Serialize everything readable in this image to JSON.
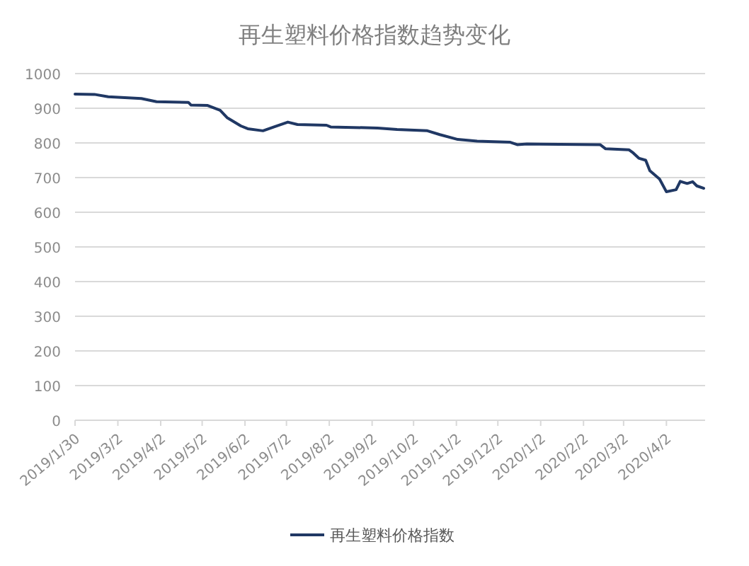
{
  "chart_data": {
    "type": "line",
    "title": "再生塑料价格指数趋势变化",
    "x": [
      "2019-01-30",
      "2019-02-13",
      "2019-02-23",
      "2019-03-19",
      "2019-03-30",
      "2019-04-22",
      "2019-04-24",
      "2019-05-06",
      "2019-05-15",
      "2019-05-20",
      "2019-05-30",
      "2019-06-04",
      "2019-06-15",
      "2019-06-23",
      "2019-07-03",
      "2019-07-10",
      "2019-07-31",
      "2019-08-03",
      "2019-09-06",
      "2019-09-20",
      "2019-10-12",
      "2019-10-21",
      "2019-11-03",
      "2019-11-17",
      "2019-12-11",
      "2019-12-16",
      "2019-12-23",
      "2020-02-14",
      "2020-02-18",
      "2020-03-06",
      "2020-03-09",
      "2020-03-13",
      "2020-03-18",
      "2020-03-21",
      "2020-03-28",
      "2020-04-02",
      "2020-04-09",
      "2020-04-12",
      "2020-04-17",
      "2020-04-21",
      "2020-04-24",
      "2020-04-29"
    ],
    "series": [
      {
        "name": "再生塑料价格指数",
        "color": "#203864",
        "values": [
          941,
          940,
          933,
          928,
          919,
          917,
          909,
          908,
          894,
          873,
          849,
          841,
          835,
          846,
          860,
          853,
          851,
          846,
          843,
          839,
          835,
          824,
          810,
          805,
          802,
          795,
          797,
          795,
          783,
          780,
          771,
          756,
          750,
          720,
          696,
          659,
          665,
          689,
          683,
          688,
          676,
          669
        ]
      }
    ],
    "xlim": [
      "2019-01-30",
      "2020-04-30"
    ],
    "xticks": [
      {
        "value": "2019-01-30",
        "label": "2019/1/30"
      },
      {
        "value": "2019-03-02",
        "label": "2019/3/2"
      },
      {
        "value": "2019-04-02",
        "label": "2019/4/2"
      },
      {
        "value": "2019-05-02",
        "label": "2019/5/2"
      },
      {
        "value": "2019-06-02",
        "label": "2019/6/2"
      },
      {
        "value": "2019-07-02",
        "label": "2019/7/2"
      },
      {
        "value": "2019-08-02",
        "label": "2019/8/2"
      },
      {
        "value": "2019-09-02",
        "label": "2019/9/2"
      },
      {
        "value": "2019-10-02",
        "label": "2019/10/2"
      },
      {
        "value": "2019-11-02",
        "label": "2019/11/2"
      },
      {
        "value": "2019-12-02",
        "label": "2019/12/2"
      },
      {
        "value": "2020-01-02",
        "label": "2020/1/2"
      },
      {
        "value": "2020-02-02",
        "label": "2020/2/2"
      },
      {
        "value": "2020-03-02",
        "label": "2020/3/2"
      },
      {
        "value": "2020-04-02",
        "label": "2020/4/2"
      }
    ],
    "ylim": [
      0,
      1000
    ],
    "yticks": [
      0,
      100,
      200,
      300,
      400,
      500,
      600,
      700,
      800,
      900,
      1000
    ],
    "grid": "y",
    "legend": "bottom",
    "marker": "none",
    "line_style": "solid"
  }
}
